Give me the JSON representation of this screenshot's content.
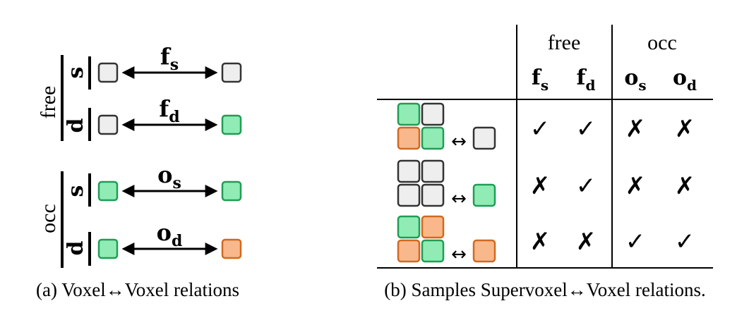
{
  "colors": {
    "free_fill": "#eeeeee",
    "free_stroke": "#333333",
    "green_fill": "#90ecb4",
    "green_stroke": "#1f9d55",
    "orange_fill": "#f8b88c",
    "orange_stroke": "#d2691e"
  },
  "panel_a": {
    "group_free": "free",
    "group_occ": "occ",
    "label_s": "s",
    "label_d": "d",
    "relations": [
      {
        "main": "f",
        "sub": "s",
        "left": "free",
        "right": "free"
      },
      {
        "main": "f",
        "sub": "d",
        "left": "free",
        "right": "green"
      },
      {
        "main": "o",
        "sub": "s",
        "left": "green",
        "right": "green"
      },
      {
        "main": "o",
        "sub": "d",
        "left": "green",
        "right": "orange"
      }
    ],
    "caption": "(a) Voxel↔Voxel relations"
  },
  "panel_b": {
    "groups": [
      "free",
      "occ"
    ],
    "columns": [
      {
        "main": "f",
        "sub": "s"
      },
      {
        "main": "f",
        "sub": "d"
      },
      {
        "main": "o",
        "sub": "s"
      },
      {
        "main": "o",
        "sub": "d"
      }
    ],
    "arrow_symbol": "↔",
    "check": "✓",
    "cross": "✗",
    "rows": [
      {
        "supervoxel": [
          "green",
          "free",
          "orange",
          "green"
        ],
        "voxel": "free",
        "values": [
          true,
          true,
          false,
          false
        ]
      },
      {
        "supervoxel": [
          "free",
          "free",
          "free",
          "free"
        ],
        "voxel": "green",
        "values": [
          false,
          true,
          false,
          false
        ]
      },
      {
        "supervoxel": [
          "green",
          "orange",
          "orange",
          "green"
        ],
        "voxel": "orange",
        "values": [
          false,
          false,
          true,
          true
        ]
      }
    ],
    "caption": "(b) Samples Supervoxel↔Voxel relations."
  }
}
